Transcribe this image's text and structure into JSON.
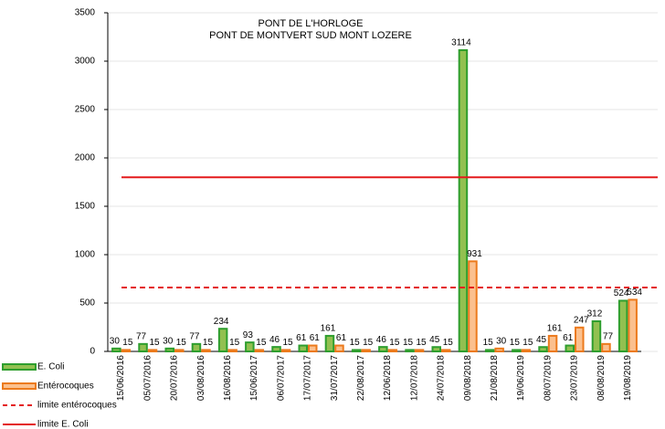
{
  "chart_data": {
    "type": "bar",
    "title": "PONT DE L'HORLOGE",
    "subtitle": "PONT DE MONTVERT SUD MONT LOZERE",
    "categories": [
      "15/06/2016",
      "05/07/2016",
      "20/07/2016",
      "03/08/2016",
      "16/08/2016",
      "15/06/2017",
      "06/07/2017",
      "17/07/2017",
      "31/07/2017",
      "22/08/2017",
      "12/06/2018",
      "12/07/2018",
      "24/07/2018",
      "09/08/2018",
      "21/08/2018",
      "19/06/2019",
      "08/07/2019",
      "23/07/2019",
      "08/08/2019",
      "19/08/2019"
    ],
    "series": [
      {
        "name": "E. Coli",
        "color": "#92c050",
        "stroke": "#2e9e2e",
        "values": [
          30,
          77,
          30,
          77,
          234,
          93,
          46,
          61,
          161,
          15,
          46,
          15,
          45,
          3114,
          15,
          15,
          45,
          61,
          312,
          524
        ]
      },
      {
        "name": "Entérocoques",
        "color": "#fbc08e",
        "stroke": "#ec7a1c",
        "values": [
          15,
          15,
          15,
          15,
          15,
          15,
          15,
          61,
          61,
          15,
          15,
          15,
          15,
          931,
          30,
          15,
          161,
          247,
          77,
          534
        ]
      }
    ],
    "limits": [
      {
        "name": "limite entérocoques",
        "value": 660,
        "color": "#e41a1c",
        "dashed": true
      },
      {
        "name": "limite E. Coli",
        "value": 1800,
        "color": "#e41a1c",
        "dashed": false
      }
    ],
    "ylim": [
      0,
      3500
    ],
    "yticks": [
      0,
      500,
      1000,
      1500,
      2000,
      2500,
      3000,
      3500
    ],
    "grid": true
  }
}
